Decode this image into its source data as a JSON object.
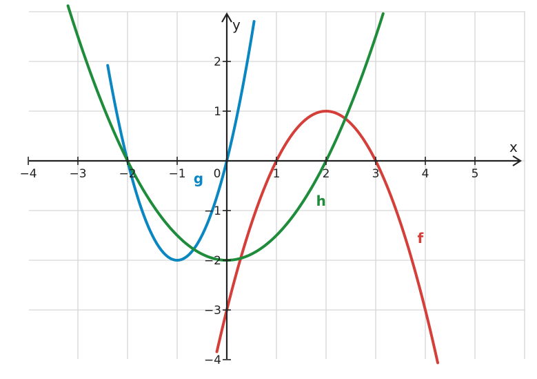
{
  "chart_data": {
    "type": "line",
    "title": "",
    "xlabel": "x",
    "ylabel": "y",
    "xlim": [
      -4,
      6
    ],
    "ylim": [
      -4,
      3
    ],
    "grid": true,
    "x_ticks": [
      -4,
      -3,
      -2,
      -1,
      0,
      1,
      2,
      3,
      4,
      5
    ],
    "x_tick_labels": [
      "−4",
      "−3",
      "−2",
      "−1",
      "0",
      "1",
      "2",
      "3",
      "4",
      "5"
    ],
    "y_ticks": [
      -4,
      -3,
      -2,
      -1,
      1,
      2
    ],
    "y_tick_labels": [
      "−4",
      "−3",
      "−2",
      "−1",
      "1",
      "2"
    ],
    "series": [
      {
        "name": "f",
        "color": "#d43f3a",
        "x_range": [
          -0.2,
          4.25
        ],
        "points": [
          [
            -0.2,
            -3.84
          ],
          [
            0,
            -3
          ],
          [
            0.5,
            -1.25
          ],
          [
            1,
            0
          ],
          [
            1.5,
            0.75
          ],
          [
            2,
            1
          ],
          [
            2.5,
            0.75
          ],
          [
            3,
            0
          ],
          [
            3.5,
            -1.25
          ],
          [
            4,
            -3
          ],
          [
            4.25,
            -4.06
          ]
        ],
        "label_x": 3.9,
        "label_y": -1.65
      },
      {
        "name": "g",
        "color": "#0a86c1",
        "x_range": [
          -2.4,
          0.55
        ],
        "points": [
          [
            -2.4,
            1.92
          ],
          [
            -2,
            0
          ],
          [
            -1.5,
            -1.5
          ],
          [
            -1,
            -2
          ],
          [
            -0.5,
            -1.5
          ],
          [
            0,
            0
          ],
          [
            0.5,
            2.5
          ],
          [
            0.55,
            2.81
          ]
        ],
        "label_x": -0.57,
        "label_y": -0.45
      },
      {
        "name": "h",
        "color": "#1e8c3a",
        "x_range": [
          -3.2,
          3.15
        ],
        "points": [
          [
            -3.2,
            3.12
          ],
          [
            -3,
            2.5
          ],
          [
            -2,
            0
          ],
          [
            -1,
            -1.5
          ],
          [
            0,
            -2
          ],
          [
            1,
            -1.5
          ],
          [
            2,
            0
          ],
          [
            3,
            2.5
          ],
          [
            3.15,
            2.96
          ]
        ],
        "label_x": 1.9,
        "label_y": -0.9
      }
    ]
  }
}
